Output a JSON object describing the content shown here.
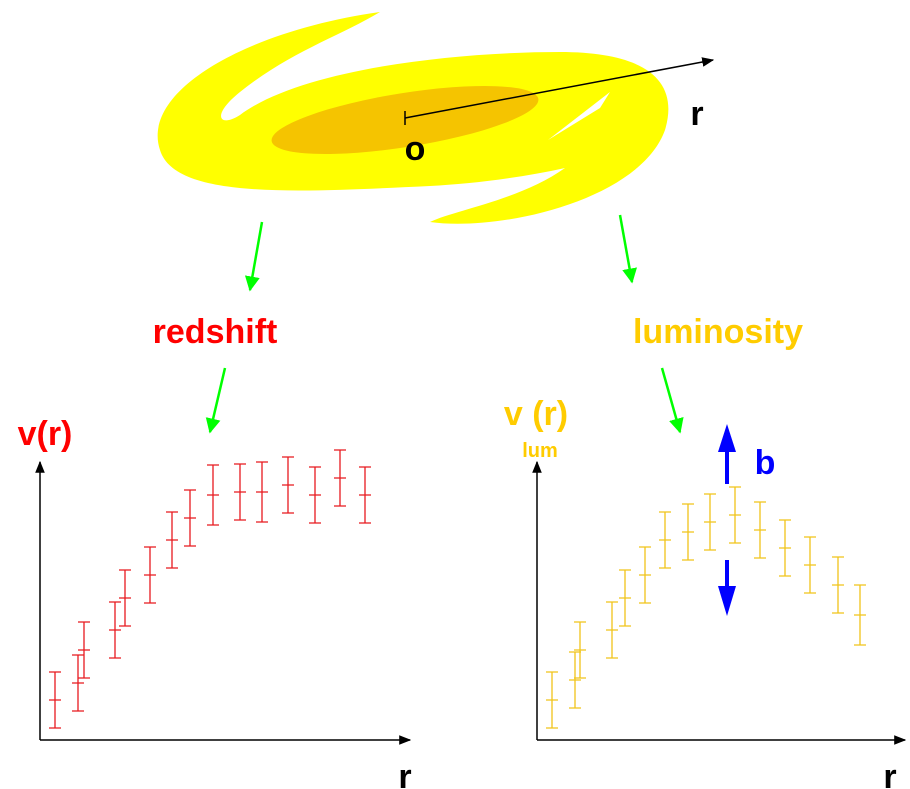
{
  "galaxy": {
    "center_label": "o",
    "axis_label": "r"
  },
  "left_plot": {
    "label": "redshift",
    "y_axis": "v(r)",
    "x_axis": "r"
  },
  "right_plot": {
    "label": "luminosity",
    "y_axis": "v (r)",
    "y_axis_subscript": "lum",
    "x_axis": "r",
    "offset_label": "b"
  }
}
